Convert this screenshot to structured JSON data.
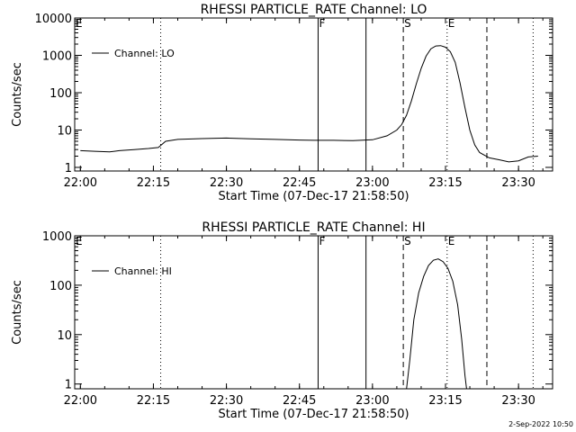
{
  "footer_stamp": "2-Sep-2022 10:50",
  "chart_data": [
    {
      "type": "line",
      "title": "RHESSI PARTICLE_RATE Channel: LO",
      "xlabel": "Start Time (07-Dec-17 21:58:50)",
      "ylabel": "Counts/sec",
      "y_scale": "log",
      "xlim": [
        "21:58:50",
        "23:37:00"
      ],
      "ylim": [
        0.8,
        10000
      ],
      "x_tick_labels": [
        "22:00",
        "22:15",
        "22:30",
        "22:45",
        "23:00",
        "23:15",
        "23:30"
      ],
      "y_tick_labels": [
        "1",
        "10",
        "100",
        "1000",
        "10000"
      ],
      "legend": {
        "label": "Channel: LO",
        "placement": "top-left"
      },
      "markers": [
        {
          "time": "21:58:50",
          "style": "dotted",
          "label": "E"
        },
        {
          "time": "22:16:30",
          "style": "dotted",
          "label": ""
        },
        {
          "time": "22:48:50",
          "style": "solid",
          "label": "F"
        },
        {
          "time": "22:58:40",
          "style": "solid",
          "label": ""
        },
        {
          "time": "23:06:20",
          "style": "dashed",
          "label": "S"
        },
        {
          "time": "23:15:20",
          "style": "dotted",
          "label": "E"
        },
        {
          "time": "23:23:30",
          "style": "dashed",
          "label": ""
        },
        {
          "time": "23:33:00",
          "style": "dotted",
          "label": ""
        }
      ],
      "series": [
        {
          "name": "Channel: LO",
          "points": [
            [
              "22:00:00",
              2.8
            ],
            [
              "22:03:00",
              2.7
            ],
            [
              "22:06:00",
              2.6
            ],
            [
              "22:08:00",
              2.8
            ],
            [
              "22:11:00",
              3.0
            ],
            [
              "22:14:00",
              3.2
            ],
            [
              "22:16:00",
              3.4
            ],
            [
              "22:17:30",
              5.0
            ],
            [
              "22:20:00",
              5.6
            ],
            [
              "22:25:00",
              5.9
            ],
            [
              "22:30:00",
              6.1
            ],
            [
              "22:35:00",
              5.8
            ],
            [
              "22:40:00",
              5.6
            ],
            [
              "22:45:00",
              5.4
            ],
            [
              "22:48:00",
              5.3
            ],
            [
              "22:52:00",
              5.3
            ],
            [
              "22:56:00",
              5.2
            ],
            [
              "23:00:00",
              5.5
            ],
            [
              "23:03:00",
              7.0
            ],
            [
              "23:05:00",
              10
            ],
            [
              "23:06:00",
              14
            ],
            [
              "23:07:00",
              25
            ],
            [
              "23:08:00",
              60
            ],
            [
              "23:09:00",
              170
            ],
            [
              "23:10:00",
              450
            ],
            [
              "23:11:00",
              950
            ],
            [
              "23:12:00",
              1500
            ],
            [
              "23:13:00",
              1780
            ],
            [
              "23:14:00",
              1820
            ],
            [
              "23:15:00",
              1650
            ],
            [
              "23:16:00",
              1250
            ],
            [
              "23:17:00",
              650
            ],
            [
              "23:18:00",
              180
            ],
            [
              "23:19:00",
              40
            ],
            [
              "23:20:00",
              10
            ],
            [
              "23:21:00",
              4
            ],
            [
              "23:22:00",
              2.5
            ],
            [
              "23:24:00",
              1.8
            ],
            [
              "23:26:00",
              1.6
            ],
            [
              "23:28:00",
              1.4
            ],
            [
              "23:30:00",
              1.5
            ],
            [
              "23:32:00",
              1.9
            ],
            [
              "23:34:00",
              2.0
            ]
          ]
        }
      ]
    },
    {
      "type": "line",
      "title": "RHESSI PARTICLE_RATE Channel: HI",
      "xlabel": "Start Time (07-Dec-17 21:58:50)",
      "ylabel": "Counts/sec",
      "y_scale": "log",
      "xlim": [
        "21:58:50",
        "23:37:00"
      ],
      "ylim": [
        0.8,
        1000
      ],
      "x_tick_labels": [
        "22:00",
        "22:15",
        "22:30",
        "22:45",
        "23:00",
        "23:15",
        "23:30"
      ],
      "y_tick_labels": [
        "1",
        "10",
        "100",
        "1000"
      ],
      "legend": {
        "label": "Channel: HI",
        "placement": "top-left"
      },
      "markers": [
        {
          "time": "21:58:50",
          "style": "dotted",
          "label": "E"
        },
        {
          "time": "22:16:30",
          "style": "dotted",
          "label": ""
        },
        {
          "time": "22:48:50",
          "style": "solid",
          "label": "F"
        },
        {
          "time": "22:58:40",
          "style": "solid",
          "label": ""
        },
        {
          "time": "23:06:20",
          "style": "dashed",
          "label": "S"
        },
        {
          "time": "23:15:20",
          "style": "dotted",
          "label": "E"
        },
        {
          "time": "23:23:30",
          "style": "dashed",
          "label": ""
        },
        {
          "time": "23:33:00",
          "style": "dotted",
          "label": ""
        }
      ],
      "series": [
        {
          "name": "Channel: HI",
          "points": [
            [
              "23:07:00",
              0.8
            ],
            [
              "23:07:40",
              3
            ],
            [
              "23:08:30",
              20
            ],
            [
              "23:09:30",
              70
            ],
            [
              "23:10:30",
              150
            ],
            [
              "23:11:30",
              250
            ],
            [
              "23:12:30",
              320
            ],
            [
              "23:13:30",
              340
            ],
            [
              "23:14:30",
              300
            ],
            [
              "23:15:30",
              220
            ],
            [
              "23:16:30",
              120
            ],
            [
              "23:17:30",
              40
            ],
            [
              "23:18:20",
              8
            ],
            [
              "23:19:00",
              1.5
            ],
            [
              "23:19:20",
              0.8
            ]
          ]
        }
      ]
    }
  ]
}
